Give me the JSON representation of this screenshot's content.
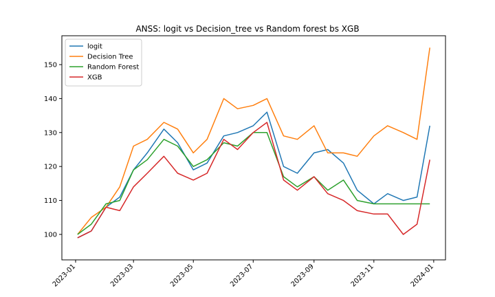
{
  "chart_data": {
    "type": "line",
    "title": "ANSS: logit vs Decision_tree vs Random forest bs XGB",
    "xlabel": "",
    "ylabel": "",
    "x_ticks": [
      "2023-01",
      "2023-03",
      "2023-05",
      "2023-07",
      "2023-09",
      "2023-11",
      "2024-01"
    ],
    "y_ticks": [
      100,
      110,
      120,
      130,
      140,
      150
    ],
    "ylim": [
      92.5,
      158.5
    ],
    "xlim": [
      "2022-12-18",
      "2024-01-13"
    ],
    "grid": false,
    "legend_position": "top-left",
    "x": [
      "2023-01-03",
      "2023-01-17",
      "2023-02-01",
      "2023-02-15",
      "2023-03-01",
      "2023-03-15",
      "2023-04-01",
      "2023-04-15",
      "2023-05-01",
      "2023-05-15",
      "2023-06-01",
      "2023-06-15",
      "2023-07-01",
      "2023-07-15",
      "2023-08-01",
      "2023-08-15",
      "2023-09-01",
      "2023-09-15",
      "2023-10-01",
      "2023-10-15",
      "2023-11-01",
      "2023-11-15",
      "2023-12-01",
      "2023-12-15",
      "2023-12-28"
    ],
    "series": [
      {
        "name": "logit",
        "color": "#1f77b4",
        "values": [
          99,
          101,
          108,
          111,
          119,
          124,
          131,
          127,
          119,
          121,
          129,
          130,
          132,
          136,
          120,
          118,
          124,
          125,
          121,
          113,
          109,
          112,
          110,
          111,
          132
        ]
      },
      {
        "name": "Decision Tree",
        "color": "#ff7f0e",
        "values": [
          100,
          105,
          108,
          114,
          126,
          128,
          133,
          131,
          124,
          128,
          140,
          137,
          138,
          140,
          129,
          128,
          132,
          124,
          124,
          123,
          129,
          132,
          130,
          128,
          155
        ]
      },
      {
        "name": "Random Forest",
        "color": "#2ca02c",
        "values": [
          100,
          103,
          109,
          110,
          119,
          122,
          128,
          126,
          120,
          122,
          127,
          126,
          130,
          130,
          117,
          114,
          117,
          113,
          116,
          110,
          109,
          109,
          109,
          109,
          109
        ]
      },
      {
        "name": "XGB",
        "color": "#d62728",
        "values": [
          99,
          101,
          108,
          107,
          114,
          118,
          123,
          118,
          116,
          118,
          128,
          125,
          130,
          133,
          116,
          113,
          117,
          112,
          110,
          107,
          106,
          106,
          100,
          103,
          122
        ]
      }
    ]
  }
}
